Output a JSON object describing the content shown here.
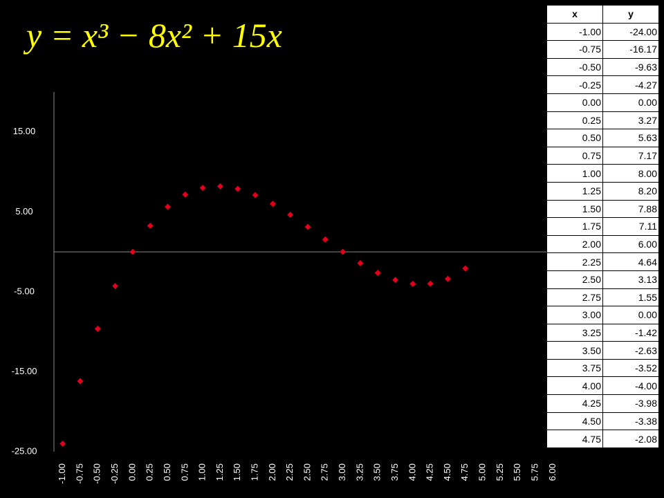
{
  "chart_data": {
    "type": "scatter",
    "title": "y = x³ − 8x² + 15x",
    "color": "#e0001a",
    "x": [
      -1,
      -0.75,
      -0.5,
      -0.25,
      0,
      0.25,
      0.5,
      0.75,
      1,
      1.25,
      1.5,
      1.75,
      2,
      2.25,
      2.5,
      2.75,
      3,
      3.25,
      3.5,
      3.75,
      4,
      4.25,
      4.5,
      4.75
    ],
    "values": [
      -24,
      -16.17,
      -9.63,
      -4.27,
      0,
      3.27,
      5.63,
      7.17,
      8,
      8.2,
      7.88,
      7.11,
      6,
      4.64,
      3.13,
      1.55,
      0,
      -1.42,
      -2.63,
      -3.52,
      -4,
      -3.98,
      -3.38,
      -2.08
    ],
    "xlim": [
      -1.125,
      6.125
    ],
    "xticks": [
      {
        "value": -1,
        "label": "-1.00"
      },
      {
        "value": -0.75,
        "label": "-0.75"
      },
      {
        "value": -0.5,
        "label": "-0.50"
      },
      {
        "value": -0.25,
        "label": "-0.25"
      },
      {
        "value": 0,
        "label": "0.00"
      },
      {
        "value": 0.25,
        "label": "0.25"
      },
      {
        "value": 0.5,
        "label": "0.50"
      },
      {
        "value": 0.75,
        "label": "0.75"
      },
      {
        "value": 1,
        "label": "1.00"
      },
      {
        "value": 1.25,
        "label": "1.25"
      },
      {
        "value": 1.5,
        "label": "1.50"
      },
      {
        "value": 1.75,
        "label": "1.75"
      },
      {
        "value": 2,
        "label": "2.00"
      },
      {
        "value": 2.25,
        "label": "2.25"
      },
      {
        "value": 2.5,
        "label": "2.50"
      },
      {
        "value": 2.75,
        "label": "2.75"
      },
      {
        "value": 3,
        "label": "3.00"
      },
      {
        "value": 3.25,
        "label": "3.25"
      },
      {
        "value": 3.5,
        "label": "3.50"
      },
      {
        "value": 3.75,
        "label": "3.75"
      },
      {
        "value": 4,
        "label": "4.00"
      },
      {
        "value": 4.25,
        "label": "4.25"
      },
      {
        "value": 4.5,
        "label": "4.50"
      },
      {
        "value": 4.75,
        "label": "4.75"
      },
      {
        "value": 5,
        "label": "5.00"
      },
      {
        "value": 5.25,
        "label": "5.25"
      },
      {
        "value": 5.5,
        "label": "5.50"
      },
      {
        "value": 5.75,
        "label": "5.75"
      },
      {
        "value": 6,
        "label": "6.00"
      }
    ],
    "ylim": [
      -25,
      20
    ],
    "yticks": [
      {
        "value": -25,
        "label": "-25.00"
      },
      {
        "value": -15,
        "label": "-15.00"
      },
      {
        "value": -5,
        "label": "-5.00"
      },
      {
        "value": 5,
        "label": "5.00"
      },
      {
        "value": 15,
        "label": "15.00"
      }
    ],
    "grid": false
  },
  "table": {
    "header": [
      "x",
      "y"
    ],
    "rows": [
      [
        "-1.00",
        "-24.00"
      ],
      [
        "-0.75",
        "-16.17"
      ],
      [
        "-0.50",
        "-9.63"
      ],
      [
        "-0.25",
        "-4.27"
      ],
      [
        "0.00",
        "0.00"
      ],
      [
        "0.25",
        "3.27"
      ],
      [
        "0.50",
        "5.63"
      ],
      [
        "0.75",
        "7.17"
      ],
      [
        "1.00",
        "8.00"
      ],
      [
        "1.25",
        "8.20"
      ],
      [
        "1.50",
        "7.88"
      ],
      [
        "1.75",
        "7.11"
      ],
      [
        "2.00",
        "6.00"
      ],
      [
        "2.25",
        "4.64"
      ],
      [
        "2.50",
        "3.13"
      ],
      [
        "2.75",
        "1.55"
      ],
      [
        "3.00",
        "0.00"
      ],
      [
        "3.25",
        "-1.42"
      ],
      [
        "3.50",
        "-2.63"
      ],
      [
        "3.75",
        "-3.52"
      ],
      [
        "4.00",
        "-4.00"
      ],
      [
        "4.25",
        "-3.98"
      ],
      [
        "4.50",
        "-3.38"
      ],
      [
        "4.75",
        "-2.08"
      ]
    ]
  }
}
